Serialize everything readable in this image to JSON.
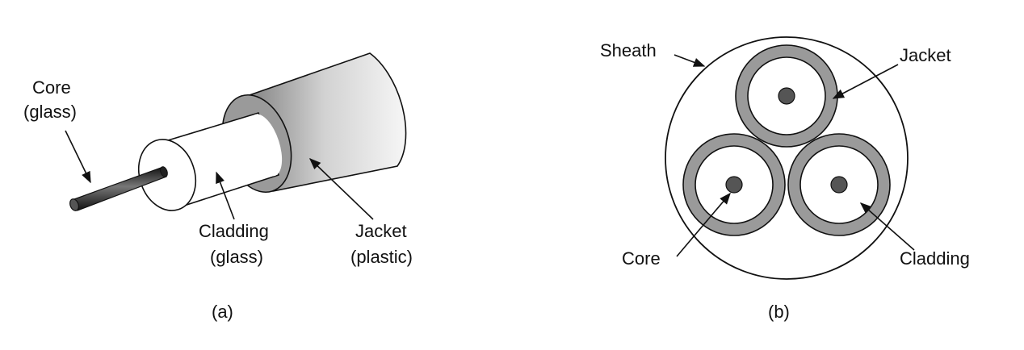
{
  "panel_a": {
    "labels": {
      "core_line1": "Core",
      "core_line2": "(glass)",
      "cladding_line1": "Cladding",
      "cladding_line2": "(glass)",
      "jacket_line1": "Jacket",
      "jacket_line2": "(plastic)"
    },
    "caption": "(a)"
  },
  "panel_b": {
    "labels": {
      "sheath": "Sheath",
      "jacket": "Jacket",
      "core": "Core",
      "cladding": "Cladding"
    },
    "caption": "(b)"
  },
  "colors": {
    "line": "#111111",
    "jacket_gray": "#9a9a9a",
    "core_gray": "#555555",
    "cladding_fill": "#ffffff",
    "background": "#ffffff"
  }
}
